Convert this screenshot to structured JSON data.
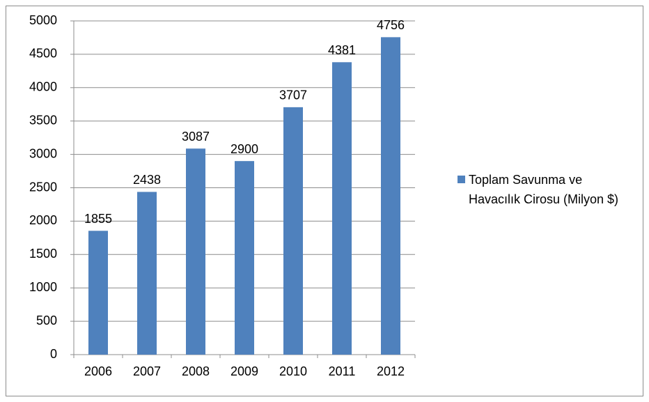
{
  "chart_data": {
    "type": "bar",
    "categories": [
      "2006",
      "2007",
      "2008",
      "2009",
      "2010",
      "2011",
      "2012"
    ],
    "series": [
      {
        "name": "Toplam Savunma ve Havacılık Cirosu (Milyon $)",
        "color": "#4f81bd",
        "values": [
          1855,
          2438,
          3087,
          2900,
          3707,
          4381,
          4756
        ]
      }
    ],
    "ylim": [
      0,
      5000
    ],
    "yticks": [
      0,
      500,
      1000,
      1500,
      2000,
      2500,
      3000,
      3500,
      4000,
      4500,
      5000
    ],
    "grid": true,
    "legend": "right",
    "data_labels": true
  }
}
